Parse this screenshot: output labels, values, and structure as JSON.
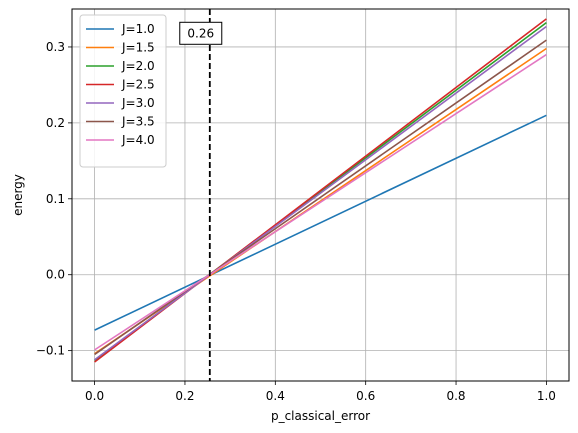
{
  "chart_data": {
    "type": "line",
    "xlabel": "p_classical_error",
    "ylabel": "energy",
    "xlim": [
      -0.05,
      1.05
    ],
    "ylim": [
      -0.14,
      0.35
    ],
    "xticks": [
      0.0,
      0.2,
      0.4,
      0.6,
      0.8,
      1.0
    ],
    "xtick_labels": [
      "0.0",
      "0.2",
      "0.4",
      "0.6",
      "0.8",
      "1.0"
    ],
    "yticks": [
      -0.1,
      0.0,
      0.1,
      0.2,
      0.3
    ],
    "ytick_labels": [
      "−0.1",
      "0.0",
      "0.1",
      "0.2",
      "0.3"
    ],
    "grid": true,
    "legend_position": "top-left",
    "x": [
      0.0,
      1.0
    ],
    "series": [
      {
        "name": "J=1.0",
        "color": "#1f77b4",
        "values": [
          -0.073,
          0.21
        ]
      },
      {
        "name": "J=1.5",
        "color": "#ff7f0e",
        "values": [
          -0.104,
          0.298
        ]
      },
      {
        "name": "J=2.0",
        "color": "#2ca02c",
        "values": [
          -0.113,
          0.332
        ]
      },
      {
        "name": "J=2.5",
        "color": "#d62728",
        "values": [
          -0.115,
          0.337
        ]
      },
      {
        "name": "J=3.0",
        "color": "#9467bd",
        "values": [
          -0.112,
          0.327
        ]
      },
      {
        "name": "J=3.5",
        "color": "#8c564b",
        "values": [
          -0.105,
          0.309
        ]
      },
      {
        "name": "J=4.0",
        "color": "#e377c2",
        "values": [
          -0.099,
          0.29
        ]
      }
    ],
    "vline": {
      "x": 0.255,
      "color": "#000000",
      "style": "dashed"
    },
    "annotation": {
      "text": "0.26",
      "x": 0.235,
      "y": 0.318
    }
  }
}
